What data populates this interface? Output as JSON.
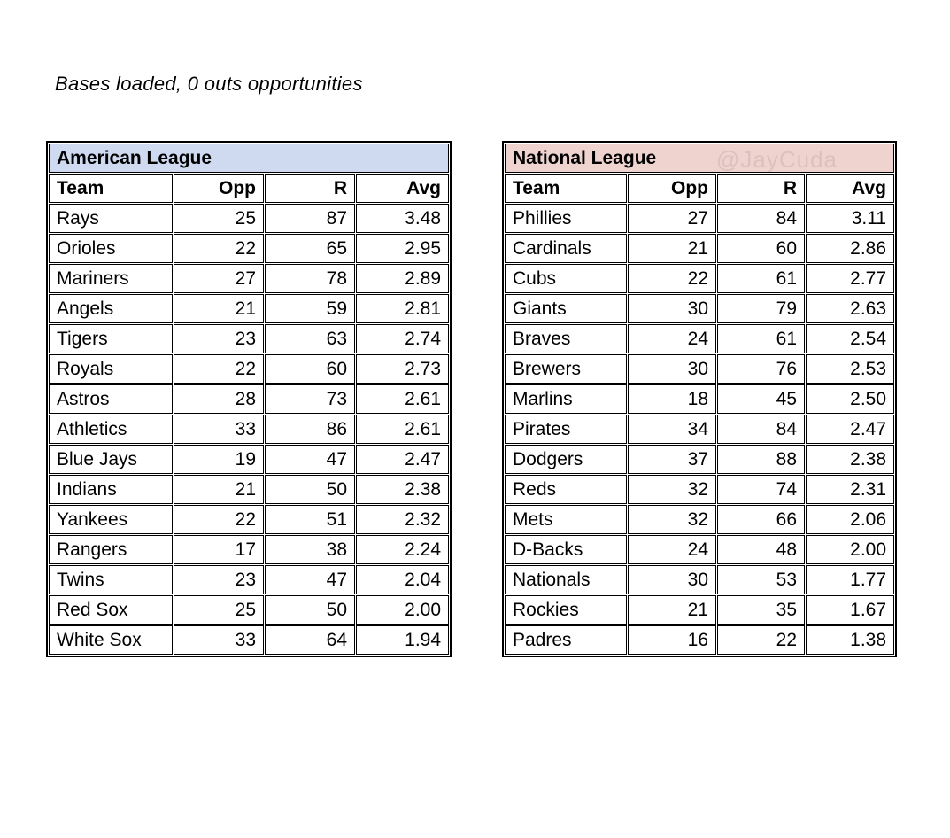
{
  "page_title": "Bases loaded, 0 outs opportunities",
  "watermark": "@JayCuda",
  "columns": [
    "Team",
    "Opp",
    "R",
    "Avg"
  ],
  "colors": {
    "al_header_bg": "#cfdaf1",
    "nl_header_bg": "#eed3cf",
    "border": "#000000",
    "watermark_text": "#dcc2bf"
  },
  "chart_data": [
    {
      "type": "table",
      "league": "American League",
      "columns": [
        "Team",
        "Opp",
        "R",
        "Avg"
      ],
      "rows": [
        [
          "Rays",
          "25",
          "87",
          "3.48"
        ],
        [
          "Orioles",
          "22",
          "65",
          "2.95"
        ],
        [
          "Mariners",
          "27",
          "78",
          "2.89"
        ],
        [
          "Angels",
          "21",
          "59",
          "2.81"
        ],
        [
          "Tigers",
          "23",
          "63",
          "2.74"
        ],
        [
          "Royals",
          "22",
          "60",
          "2.73"
        ],
        [
          "Astros",
          "28",
          "73",
          "2.61"
        ],
        [
          "Athletics",
          "33",
          "86",
          "2.61"
        ],
        [
          "Blue Jays",
          "19",
          "47",
          "2.47"
        ],
        [
          "Indians",
          "21",
          "50",
          "2.38"
        ],
        [
          "Yankees",
          "22",
          "51",
          "2.32"
        ],
        [
          "Rangers",
          "17",
          "38",
          "2.24"
        ],
        [
          "Twins",
          "23",
          "47",
          "2.04"
        ],
        [
          "Red Sox",
          "25",
          "50",
          "2.00"
        ],
        [
          "White Sox",
          "33",
          "64",
          "1.94"
        ]
      ]
    },
    {
      "type": "table",
      "league": "National League",
      "columns": [
        "Team",
        "Opp",
        "R",
        "Avg"
      ],
      "rows": [
        [
          "Phillies",
          "27",
          "84",
          "3.11"
        ],
        [
          "Cardinals",
          "21",
          "60",
          "2.86"
        ],
        [
          "Cubs",
          "22",
          "61",
          "2.77"
        ],
        [
          "Giants",
          "30",
          "79",
          "2.63"
        ],
        [
          "Braves",
          "24",
          "61",
          "2.54"
        ],
        [
          "Brewers",
          "30",
          "76",
          "2.53"
        ],
        [
          "Marlins",
          "18",
          "45",
          "2.50"
        ],
        [
          "Pirates",
          "34",
          "84",
          "2.47"
        ],
        [
          "Dodgers",
          "37",
          "88",
          "2.38"
        ],
        [
          "Reds",
          "32",
          "74",
          "2.31"
        ],
        [
          "Mets",
          "32",
          "66",
          "2.06"
        ],
        [
          "D-Backs",
          "24",
          "48",
          "2.00"
        ],
        [
          "Nationals",
          "30",
          "53",
          "1.77"
        ],
        [
          "Rockies",
          "21",
          "35",
          "1.67"
        ],
        [
          "Padres",
          "16",
          "22",
          "1.38"
        ]
      ]
    }
  ]
}
